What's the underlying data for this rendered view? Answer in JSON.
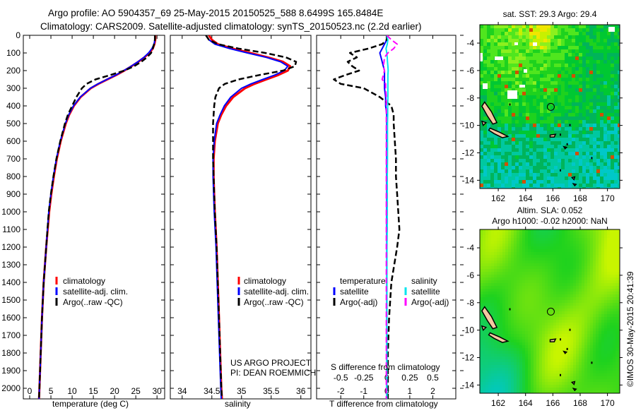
{
  "title": {
    "line1": "Argo profile: AO 5904357_69 25-May-2015 20150525_588 8.6499S 165.8484E",
    "line2": "Climatology: CARS2009. Satellite-adjusted climatology: synTS_20150523.nc (2.2d earlier)"
  },
  "colors": {
    "climatology": "#ff0000",
    "satellite": "#0000ff",
    "argo": "#000000",
    "sal_satellite": "#00e5ee",
    "sal_argo": "#ff00ff"
  },
  "chart_data": [
    {
      "type": "line",
      "id": "temperature",
      "xlabel": "temperature (deg C)",
      "ylabel": "",
      "xlim": [
        -1.5,
        31.8
      ],
      "ylim": [
        2060,
        0
      ],
      "xticks": [
        0,
        5,
        10,
        15,
        20,
        25,
        30
      ],
      "yticks": [
        0,
        100,
        200,
        300,
        400,
        500,
        600,
        700,
        800,
        900,
        1000,
        1100,
        1200,
        1300,
        1400,
        1500,
        1600,
        1700,
        1800,
        1900,
        2000
      ],
      "legend": [
        "climatology",
        "satellite-adj. clim.",
        "Argo(..raw -QC)"
      ],
      "depth": [
        0,
        25,
        50,
        75,
        100,
        125,
        150,
        175,
        200,
        225,
        250,
        275,
        300,
        350,
        400,
        450,
        500,
        600,
        700,
        800,
        900,
        1000,
        1200,
        1400,
        1600,
        1800,
        2000,
        2060
      ],
      "series": [
        {
          "name": "climatology",
          "values": [
            29.6,
            29.6,
            29.4,
            29.0,
            28.2,
            27.0,
            25.6,
            24.0,
            22.3,
            20.4,
            18.3,
            16.2,
            14.4,
            12.0,
            10.4,
            9.3,
            8.5,
            7.3,
            6.4,
            5.7,
            5.1,
            4.6,
            3.9,
            3.3,
            2.9,
            2.6,
            2.3,
            2.2
          ]
        },
        {
          "name": "satellite-adj. clim.",
          "values": [
            29.5,
            29.5,
            29.3,
            28.8,
            28.0,
            26.9,
            25.5,
            23.9,
            22.2,
            20.3,
            18.2,
            16.1,
            14.3,
            11.9,
            10.3,
            9.2,
            8.4,
            7.2,
            6.3,
            5.6,
            5.0,
            4.5,
            3.9,
            3.3,
            2.9,
            2.6,
            2.3,
            2.2
          ]
        },
        {
          "name": "Argo(..raw -QC)",
          "values": [
            29.5,
            29.5,
            29.3,
            29.0,
            28.6,
            27.6,
            26.3,
            24.6,
            22.3,
            19.0,
            15.5,
            13.4,
            12.3,
            11.0,
            10.0,
            9.0,
            8.3,
            7.2,
            6.3,
            5.6,
            5.0,
            4.5,
            3.9,
            3.3,
            2.9,
            2.6,
            2.3,
            2.2
          ]
        }
      ]
    },
    {
      "type": "line",
      "id": "salinity",
      "xlabel": "salinity",
      "xlim": [
        33.8,
        36.17
      ],
      "ylim": [
        2060,
        0
      ],
      "xticks": [
        34,
        34.5,
        35,
        35.5,
        36
      ],
      "legend": [
        "climatology",
        "satellite-adj. clim.",
        "Argo(..raw -QC)"
      ],
      "annotation": [
        "US ARGO PROJECT",
        "PI: DEAN ROEMMICH"
      ],
      "depth": [
        0,
        25,
        50,
        75,
        100,
        125,
        150,
        175,
        200,
        225,
        250,
        275,
        300,
        350,
        400,
        450,
        500,
        600,
        700,
        800,
        900,
        1000,
        1200,
        1400,
        1600,
        1800,
        2000,
        2060
      ],
      "series": [
        {
          "name": "climatology",
          "values": [
            34.45,
            34.5,
            34.6,
            34.85,
            35.15,
            35.45,
            35.7,
            35.82,
            35.78,
            35.62,
            35.42,
            35.22,
            35.06,
            34.86,
            34.74,
            34.66,
            34.6,
            34.55,
            34.53,
            34.53,
            34.54,
            34.55,
            34.58,
            34.6,
            34.62,
            34.64,
            34.66,
            34.67
          ]
        },
        {
          "name": "satellite-adj. clim.",
          "values": [
            34.4,
            34.45,
            34.55,
            34.8,
            35.1,
            35.42,
            35.66,
            35.78,
            35.72,
            35.56,
            35.36,
            35.16,
            35.0,
            34.82,
            34.71,
            34.64,
            34.58,
            34.54,
            34.52,
            34.52,
            34.53,
            34.54,
            34.57,
            34.59,
            34.61,
            34.63,
            34.65,
            34.66
          ]
        },
        {
          "name": "Argo(..raw -QC)",
          "values": [
            34.4,
            34.45,
            34.6,
            34.95,
            35.4,
            35.75,
            35.92,
            35.9,
            35.7,
            35.3,
            34.95,
            34.72,
            34.62,
            34.56,
            34.54,
            34.53,
            34.52,
            34.52,
            34.52,
            34.53,
            34.54,
            34.55,
            34.58,
            34.6,
            34.62,
            34.64,
            34.66,
            34.67
          ]
        }
      ]
    },
    {
      "type": "line",
      "id": "differences",
      "xlabel": "T difference from climatology",
      "xlabel2": "S difference from climatology",
      "xlim": [
        -3.05,
        3.0
      ],
      "ylim": [
        2060,
        0
      ],
      "xticks": [
        -2,
        -1,
        0,
        1,
        2
      ],
      "xticks2": [
        -0.5,
        -0.25,
        0,
        0.25,
        0.5
      ],
      "xtick2_labels": [
        "-0.5",
        "-0.25",
        "0",
        "0.25",
        "0.5"
      ],
      "legend_temperature": {
        "title": "temperature",
        "items": [
          "satellite",
          "Argo(-adj)"
        ]
      },
      "legend_salinity": {
        "title": "salinity",
        "items": [
          "satellite",
          "Argo(-adj)"
        ]
      },
      "depth": [
        0,
        25,
        50,
        75,
        100,
        125,
        150,
        175,
        200,
        225,
        250,
        275,
        300,
        350,
        400,
        450,
        500,
        600,
        700,
        800,
        900,
        1000,
        1100,
        1200,
        1400,
        1600,
        1800,
        2000,
        2060
      ],
      "series": [
        {
          "name": "T satellite",
          "values": [
            0.0,
            0.0,
            -0.1,
            -0.2,
            -0.3,
            -0.25,
            -0.2,
            -0.15,
            -0.1,
            -0.1,
            -0.1,
            -0.1,
            -0.1,
            -0.05,
            -0.05,
            0,
            0,
            0,
            0,
            0,
            0,
            0,
            0,
            0,
            0,
            0,
            0,
            0,
            0
          ]
        },
        {
          "name": "T Argo(-adj)",
          "values": [
            0.0,
            0.0,
            -0.2,
            -0.8,
            -1.6,
            -1.3,
            -1.7,
            -1.5,
            -1.2,
            -1.8,
            -2.3,
            -2.0,
            -1.0,
            -0.3,
            0.2,
            0.3,
            0.3,
            0.35,
            0.4,
            0.4,
            0.45,
            0.5,
            0.55,
            0.45,
            0.2,
            0.1,
            0.05,
            0.05,
            0.05
          ]
        },
        {
          "name": "S satellite",
          "values": [
            0.0,
            0.05,
            0.02,
            -0.03,
            0.0,
            0.02,
            0.03,
            0.05,
            0.06,
            0.05,
            0.05,
            0.05,
            0.05,
            0.05,
            0.04,
            0.04,
            0.03,
            0.03,
            0.03,
            0.02,
            0.02,
            0.02,
            0.02,
            0.01,
            0.01,
            0.01,
            0.01,
            0.01,
            0.01
          ]
        },
        {
          "name": "S Argo(-adj)",
          "values": [
            0.0,
            0.2,
            0.45,
            0.3,
            0.05,
            -0.1,
            -0.12,
            -0.15,
            -0.1,
            -0.15,
            -0.2,
            -0.05,
            -0.05,
            -0.02,
            -0.02,
            -0.02,
            -0.02,
            -0.02,
            -0.02,
            -0.02,
            -0.02,
            -0.02,
            -0.02,
            -0.02,
            -0.02,
            -0.02,
            -0.02,
            -0.02,
            -0.02
          ]
        }
      ]
    },
    {
      "type": "heatmap",
      "id": "sst_map",
      "title": "sat. SST: 29.3 Argo: 29.4",
      "xlim": [
        160.65,
        170.9
      ],
      "ylim": [
        -14.6,
        -2.66
      ],
      "xticks": [
        162,
        164,
        166,
        168,
        170
      ],
      "yticks": [
        -4,
        -6,
        -8,
        -10,
        -12,
        -14
      ],
      "argo_position": [
        165.85,
        -8.65
      ]
    },
    {
      "type": "heatmap",
      "id": "sla_map",
      "title": "Altim. SLA: 0.052",
      "subtitle": "Argo h1000: -0.02 h2000: NaN",
      "xlim": [
        160.65,
        170.9
      ],
      "ylim": [
        -14.6,
        -2.66
      ],
      "xticks": [
        162,
        164,
        166,
        168,
        170
      ],
      "yticks": [
        -4,
        -6,
        -8,
        -10,
        -12,
        -14
      ],
      "argo_position": [
        165.85,
        -8.65
      ]
    }
  ],
  "credit": "©IMOS 30-May-2015 20:41:39"
}
